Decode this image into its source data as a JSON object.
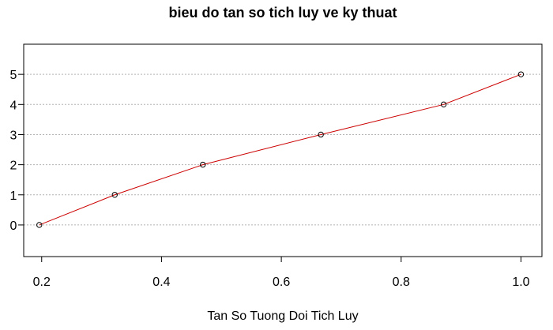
{
  "chart_data": {
    "type": "line",
    "title": "bieu do tan so tich luy ve ky thuat",
    "xlabel": "Tan So Tuong Doi Tich Luy",
    "ylabel": "",
    "x_ticks": [
      "0.2",
      "0.4",
      "0.6",
      "0.8",
      "1.0"
    ],
    "y_ticks": [
      "0",
      "1",
      "2",
      "3",
      "4",
      "5"
    ],
    "xlim": [
      0.17,
      1.035
    ],
    "ylim": [
      -1.05,
      6.0
    ],
    "grid": "horizontal dotted",
    "legend": "none",
    "series": [
      {
        "x": [
          0.196,
          0.322,
          0.469,
          0.666,
          0.871,
          1.0
        ],
        "y": [
          0,
          1,
          2,
          3,
          4,
          5
        ],
        "line_color": "#cc0000",
        "marker": "open-circle"
      }
    ]
  },
  "colors": {
    "line": "#cc0000",
    "marker": "#000000",
    "axis": "#000000",
    "grid": "#b3b3b3"
  }
}
